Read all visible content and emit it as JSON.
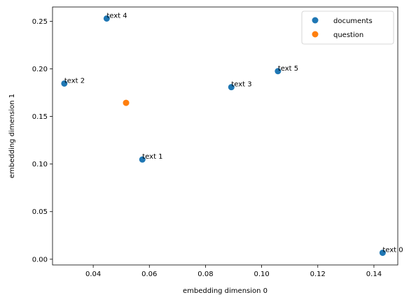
{
  "chart_data": {
    "type": "scatter",
    "title": "",
    "xlabel": "embedding dimension 0",
    "ylabel": "embedding dimension 1",
    "xlim": [
      0.0255,
      0.1485
    ],
    "ylim": [
      -0.006,
      0.265
    ],
    "xticks": [
      "0.04",
      "0.06",
      "0.08",
      "0.10",
      "0.12",
      "0.14"
    ],
    "xtick_values": [
      0.04,
      0.06,
      0.08,
      0.1,
      0.12,
      0.14
    ],
    "yticks": [
      "0.00",
      "0.05",
      "0.10",
      "0.15",
      "0.20",
      "0.25"
    ],
    "ytick_values": [
      0.0,
      0.05,
      0.1,
      0.15,
      0.2,
      0.25
    ],
    "legend_position": "top-right",
    "series": [
      {
        "name": "documents",
        "color": "#1f77b4",
        "points": [
          {
            "x": 0.1431,
            "y": 0.0068,
            "label": "text 0"
          },
          {
            "x": 0.0575,
            "y": 0.1048,
            "label": "text 1"
          },
          {
            "x": 0.0297,
            "y": 0.1846,
            "label": "text 2"
          },
          {
            "x": 0.0892,
            "y": 0.1808,
            "label": "text 3"
          },
          {
            "x": 0.0448,
            "y": 0.2529,
            "label": "text 4"
          },
          {
            "x": 0.1058,
            "y": 0.1976,
            "label": "text 5"
          }
        ]
      },
      {
        "name": "question",
        "color": "#ff7f0e",
        "points": [
          {
            "x": 0.0517,
            "y": 0.1643
          }
        ]
      }
    ]
  }
}
